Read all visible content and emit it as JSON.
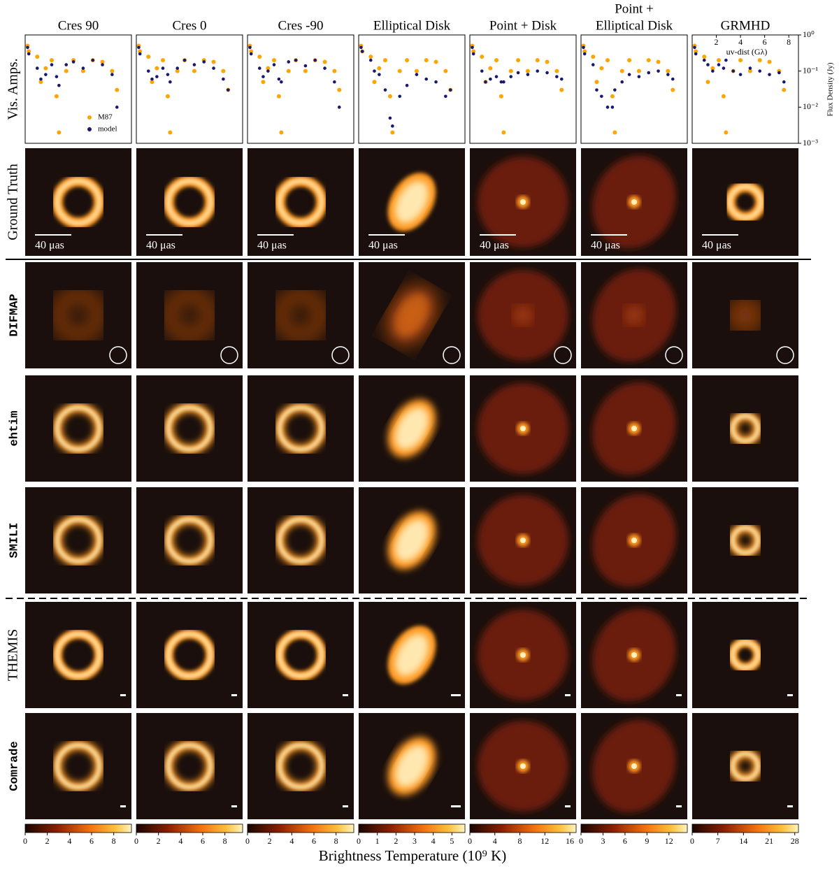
{
  "figure": {
    "rows": [
      "Vis. Amps.",
      "Ground Truth",
      "DIFMAP",
      "ehtim",
      "SMILI",
      "THEMIS",
      "Comrade"
    ],
    "columns": [
      {
        "title": [
          "Cres 90"
        ],
        "colorbar": {
          "lim": [
            0,
            9.6
          ],
          "ticks": [
            0,
            2,
            4,
            6,
            8
          ]
        }
      },
      {
        "title": [
          "Cres 0"
        ],
        "colorbar": {
          "lim": [
            0,
            9.6
          ],
          "ticks": [
            0,
            2,
            4,
            6,
            8
          ]
        }
      },
      {
        "title": [
          "Cres -90"
        ],
        "colorbar": {
          "lim": [
            0,
            9.6
          ],
          "ticks": [
            0,
            2,
            4,
            6,
            8
          ]
        }
      },
      {
        "title": [
          "Elliptical Disk"
        ],
        "colorbar": {
          "lim": [
            0,
            5.7
          ],
          "ticks": [
            0,
            1,
            2,
            3,
            4,
            5
          ]
        }
      },
      {
        "title": [
          "Point + Disk"
        ],
        "colorbar": {
          "lim": [
            0,
            17
          ],
          "ticks": [
            0,
            4,
            8,
            12,
            16
          ]
        }
      },
      {
        "title": [
          "Point +",
          "Elliptical Disk"
        ],
        "colorbar": {
          "lim": [
            0,
            14.5
          ],
          "ticks": [
            0,
            3,
            6,
            9,
            12
          ]
        }
      },
      {
        "title": [
          "GRMHD"
        ],
        "colorbar": {
          "lim": [
            0,
            29
          ],
          "ticks": [
            0,
            7,
            14,
            21,
            28
          ]
        }
      }
    ],
    "scale_bar_label": "40 μas",
    "colorbar_label": "Brightness Temperature (10⁹ K)",
    "vis_amps": {
      "log": true,
      "xlim": [
        0,
        8.8
      ],
      "ylim": [
        0.001,
        1
      ],
      "xticks": [
        2,
        4,
        6,
        8
      ],
      "xlabel": "uv-dist (Gλ)",
      "y2label": "Flux Density (Jy)",
      "y2ticks": [
        {
          "value": 1,
          "label": "10⁰"
        },
        {
          "value": 0.1,
          "label": "10⁻¹"
        },
        {
          "value": 0.01,
          "label": "10⁻²"
        },
        {
          "value": 0.001,
          "label": "10⁻³"
        }
      ],
      "x": [
        0.2,
        0.3,
        1.0,
        1.3,
        1.7,
        2.2,
        2.6,
        2.8,
        3.4,
        4.0,
        4.8,
        5.6,
        6.4,
        7.2,
        7.6
      ],
      "series": [
        {
          "name": "M87",
          "color": "#ffa500",
          "values": [
            0.5,
            0.35,
            0.25,
            0.05,
            0.12,
            0.2,
            0.02,
            0.002,
            0.1,
            0.2,
            0.1,
            0.2,
            0.18,
            0.1,
            0.03
          ]
        },
        {
          "name": "model",
          "color": "#191970",
          "values_by_column": [
            [
              0.45,
              0.3,
              0.12,
              0.06,
              0.08,
              0.15,
              0.07,
              0.04,
              0.15,
              0.18,
              0.12,
              0.2,
              0.15,
              0.08,
              0.01
            ],
            [
              0.45,
              0.3,
              0.1,
              0.06,
              0.07,
              0.12,
              0.08,
              0.05,
              0.12,
              0.2,
              0.15,
              0.18,
              0.12,
              0.06,
              0.03
            ],
            [
              0.45,
              0.3,
              0.12,
              0.07,
              0.1,
              0.15,
              0.06,
              0.05,
              0.18,
              0.2,
              0.14,
              0.2,
              0.12,
              0.05,
              0.01
            ],
            [
              0.45,
              0.35,
              0.2,
              0.1,
              0.08,
              0.03,
              0.005,
              0.003,
              0.02,
              0.04,
              0.08,
              0.06,
              0.05,
              0.02,
              0.03
            ],
            [
              0.45,
              0.3,
              0.1,
              0.05,
              0.06,
              0.07,
              0.05,
              0.05,
              0.07,
              0.09,
              0.08,
              0.1,
              0.09,
              0.07,
              0.06
            ],
            [
              0.45,
              0.3,
              0.15,
              0.03,
              0.02,
              0.01,
              0.01,
              0.03,
              0.05,
              0.08,
              0.07,
              0.09,
              0.1,
              0.08,
              0.06
            ],
            [
              0.45,
              0.3,
              0.2,
              0.15,
              0.1,
              0.15,
              0.12,
              0.2,
              0.1,
              0.08,
              0.12,
              0.1,
              0.08,
              0.09,
              0.05
            ]
          ]
        }
      ]
    }
  }
}
